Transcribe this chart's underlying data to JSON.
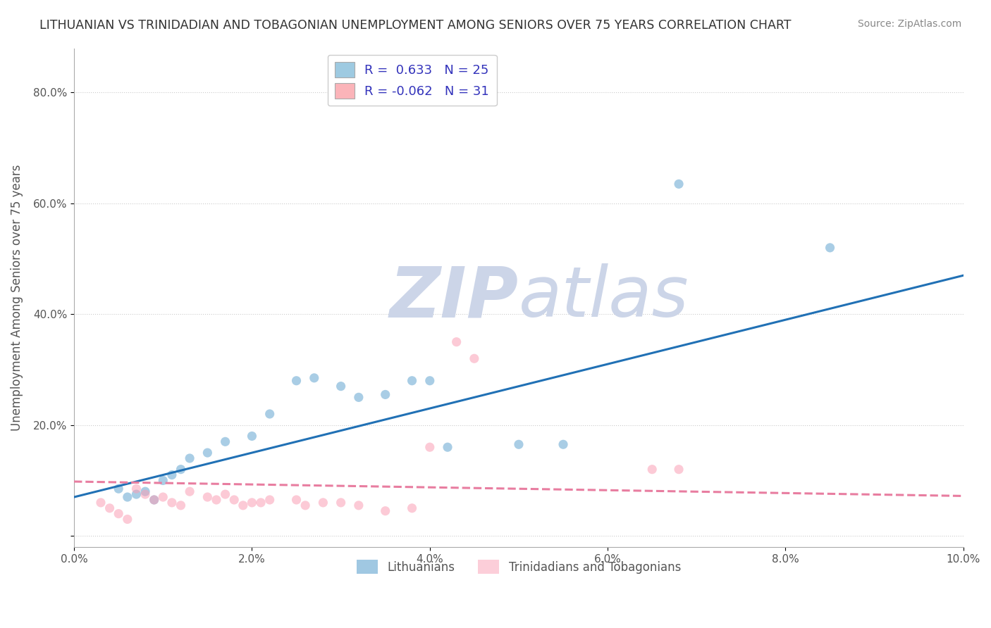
{
  "title": "LITHUANIAN VS TRINIDADIAN AND TOBAGONIAN UNEMPLOYMENT AMONG SENIORS OVER 75 YEARS CORRELATION CHART",
  "source": "Source: ZipAtlas.com",
  "ylabel": "Unemployment Among Seniors over 75 years",
  "y_ticks": [
    0.0,
    0.2,
    0.4,
    0.6,
    0.8
  ],
  "y_tick_labels": [
    "",
    "20.0%",
    "40.0%",
    "60.0%",
    "80.0%"
  ],
  "x_ticks": [
    0.0,
    0.02,
    0.04,
    0.06,
    0.08,
    0.1
  ],
  "x_tick_labels": [
    "0.0%",
    "2.0%",
    "4.0%",
    "6.0%",
    "8.0%",
    "10.0%"
  ],
  "xlim": [
    0.0,
    0.1
  ],
  "ylim": [
    -0.02,
    0.88
  ],
  "legend_line1": "R =  0.633   N = 25",
  "legend_line2": "R = -0.062   N = 31",
  "watermark_zip": "ZIP",
  "watermark_atlas": "atlas",
  "watermark_color": "#ccd5e8",
  "blue_scatter_x": [
    0.005,
    0.006,
    0.007,
    0.008,
    0.009,
    0.01,
    0.011,
    0.012,
    0.013,
    0.015,
    0.017,
    0.02,
    0.022,
    0.025,
    0.027,
    0.03,
    0.032,
    0.035,
    0.038,
    0.04,
    0.042,
    0.05,
    0.055,
    0.068,
    0.085
  ],
  "blue_scatter_y": [
    0.085,
    0.07,
    0.075,
    0.08,
    0.065,
    0.1,
    0.11,
    0.12,
    0.14,
    0.15,
    0.17,
    0.18,
    0.22,
    0.28,
    0.285,
    0.27,
    0.25,
    0.255,
    0.28,
    0.28,
    0.16,
    0.165,
    0.165,
    0.635,
    0.52
  ],
  "pink_scatter_x": [
    0.003,
    0.004,
    0.005,
    0.006,
    0.007,
    0.008,
    0.009,
    0.01,
    0.011,
    0.012,
    0.013,
    0.015,
    0.016,
    0.017,
    0.018,
    0.019,
    0.02,
    0.021,
    0.022,
    0.025,
    0.026,
    0.028,
    0.03,
    0.032,
    0.035,
    0.038,
    0.04,
    0.043,
    0.045,
    0.065,
    0.068
  ],
  "pink_scatter_y": [
    0.06,
    0.05,
    0.04,
    0.03,
    0.085,
    0.075,
    0.065,
    0.07,
    0.06,
    0.055,
    0.08,
    0.07,
    0.065,
    0.075,
    0.065,
    0.055,
    0.06,
    0.06,
    0.065,
    0.065,
    0.055,
    0.06,
    0.06,
    0.055,
    0.045,
    0.05,
    0.16,
    0.35,
    0.32,
    0.12,
    0.12
  ],
  "blue_line_x": [
    0.0,
    0.1
  ],
  "blue_line_y": [
    0.07,
    0.47
  ],
  "pink_line_x": [
    0.0,
    0.1
  ],
  "pink_line_y": [
    0.098,
    0.072
  ],
  "blue_color": "#4292c6",
  "pink_color": "#fa9fb5",
  "blue_line_color": "#2171b5",
  "pink_line_color": "#e87da0",
  "background_color": "#ffffff",
  "legend_color_blue": "#9ecae1",
  "legend_color_pink": "#fbb4b9",
  "bottom_legend_blue": "Lithuanians",
  "bottom_legend_pink": "Trinidadians and Tobagonians"
}
